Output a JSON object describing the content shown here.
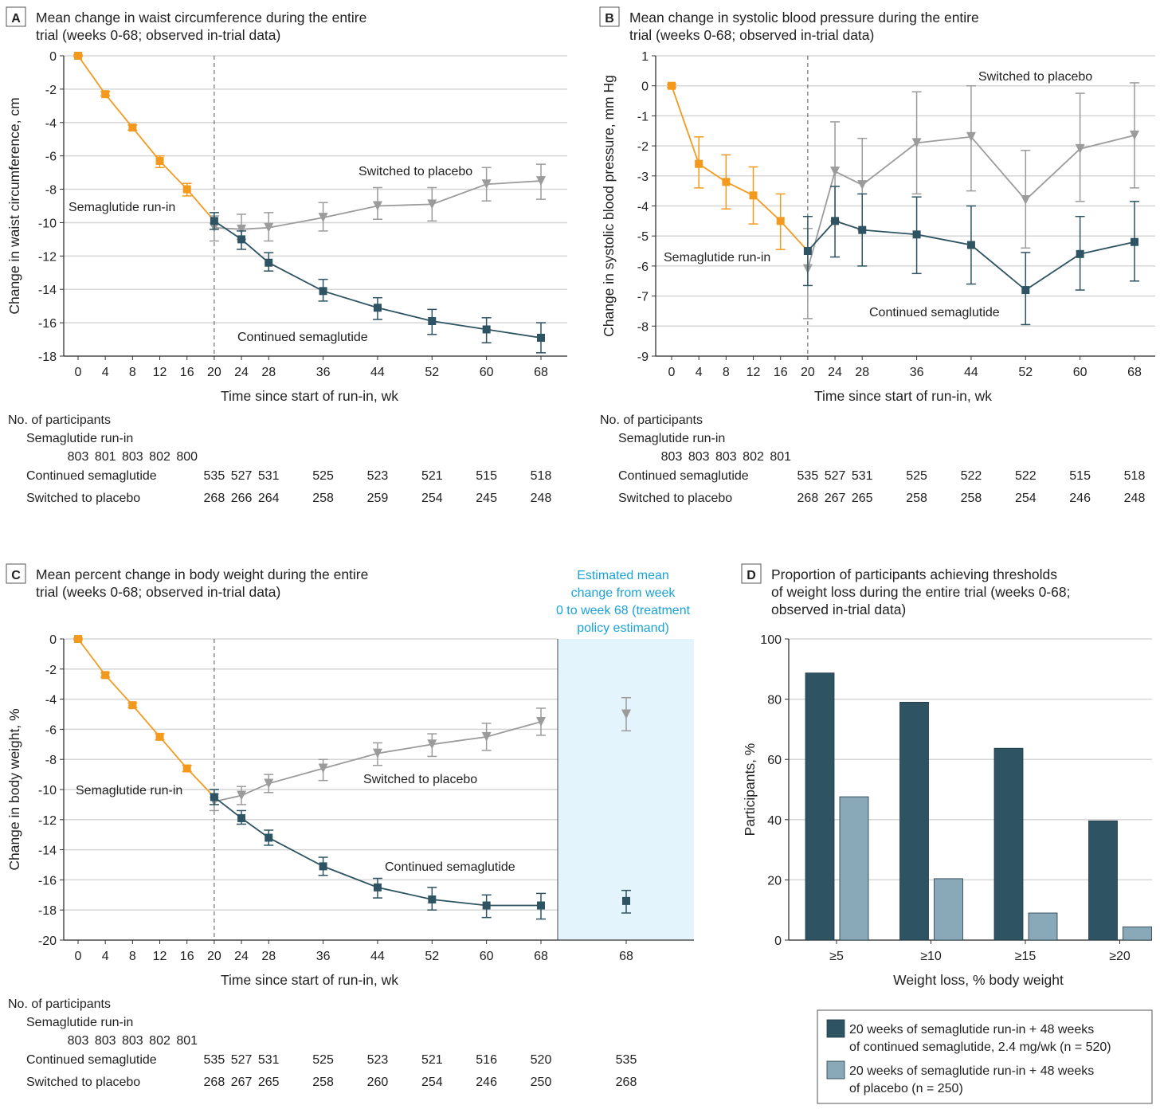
{
  "colors": {
    "runin": "#f39a1e",
    "semaglutide": "#2e5362",
    "placebo": "#9b9b9b",
    "placebo_bar": "#8aa9b8",
    "estimand_shade": "#e3f4fc",
    "estimand_text": "#1ba3d6"
  },
  "chart_data": [
    {
      "panel": "A",
      "type": "line",
      "title": "Mean change in waist circumference during the entire trial (weeks 0-68; observed in-trial data)",
      "title_lines": [
        "Mean change in waist circumference during the entire",
        "trial (weeks 0-68; observed in-trial data)"
      ],
      "xlabel": "Time since start of run-in, wk",
      "ylabel": "Change in waist circumference, cm",
      "xticks": [
        0,
        4,
        8,
        12,
        16,
        20,
        24,
        28,
        36,
        44,
        52,
        60,
        68
      ],
      "yticks": [
        0,
        -2,
        -4,
        -6,
        -8,
        -10,
        -12,
        -14,
        -16,
        -18
      ],
      "ylim": [
        -18,
        0
      ],
      "grid": true,
      "randomization_week": 20,
      "annotations": {
        "runin": "Semaglutide run-in",
        "semaglutide": "Continued semaglutide",
        "placebo": "Switched to placebo"
      },
      "series": [
        {
          "key": "runin",
          "x": [
            0,
            4,
            8,
            12,
            16,
            20
          ],
          "y": [
            0,
            -2.3,
            -4.3,
            -6.3,
            -8.0,
            -9.9
          ],
          "lo": [
            -0.05,
            -2.4,
            -4.45,
            -6.7,
            -8.4,
            -9.9
          ],
          "hi": [
            0.05,
            -2.15,
            -4.15,
            -6.0,
            -7.65,
            -9.9
          ]
        },
        {
          "key": "semaglutide",
          "x": [
            20,
            24,
            28,
            36,
            44,
            52,
            60,
            68
          ],
          "y": [
            -9.9,
            -11.0,
            -12.4,
            -14.1,
            -15.1,
            -15.9,
            -16.4,
            -16.9
          ],
          "lo": [
            -10.4,
            -11.6,
            -12.9,
            -14.7,
            -15.8,
            -16.7,
            -17.2,
            -17.8
          ],
          "hi": [
            -9.4,
            -10.5,
            -11.8,
            -13.4,
            -14.5,
            -15.2,
            -15.7,
            -16.0
          ]
        },
        {
          "key": "placebo",
          "x": [
            20,
            24,
            28,
            36,
            44,
            52,
            60,
            68
          ],
          "y": [
            -10.3,
            -10.4,
            -10.3,
            -9.7,
            -9.0,
            -8.9,
            -7.7,
            -7.5
          ],
          "lo": [
            -11.1,
            -11.0,
            -11.1,
            -10.5,
            -9.8,
            -9.9,
            -8.7,
            -8.6
          ],
          "hi": [
            -9.6,
            -9.5,
            -9.4,
            -8.8,
            -7.9,
            -7.9,
            -6.7,
            -6.5
          ]
        }
      ],
      "participants": {
        "header": "No. of participants",
        "runin_label": "Semaglutide run-in",
        "runin_weeks": [
          0,
          4,
          8,
          12,
          16
        ],
        "runin": [
          "803",
          "801",
          "803",
          "802",
          "800"
        ],
        "sema_label": "Continued semaglutide",
        "weeks": [
          20,
          24,
          28,
          36,
          44,
          52,
          60,
          68
        ],
        "sema": [
          "535",
          "527",
          "531",
          "525",
          "523",
          "521",
          "515",
          "518"
        ],
        "placebo_label": "Switched to placebo",
        "placebo": [
          "268",
          "266",
          "264",
          "258",
          "259",
          "254",
          "245",
          "248"
        ]
      }
    },
    {
      "panel": "B",
      "type": "line",
      "title": "Mean change in systolic blood pressure during the entire trial (weeks 0-68; observed in-trial data)",
      "title_lines": [
        "Mean change in systolic blood pressure during the entire",
        "trial (weeks 0-68; observed in-trial data)"
      ],
      "xlabel": "Time since start of run-in, wk",
      "ylabel": "Change in systolic blood pressure, mm Hg",
      "xticks": [
        0,
        4,
        8,
        12,
        16,
        20,
        24,
        28,
        36,
        44,
        52,
        60,
        68
      ],
      "yticks": [
        1,
        0,
        -1,
        -2,
        -3,
        -4,
        -5,
        -6,
        -7,
        -8,
        -9
      ],
      "ylim": [
        -9,
        1
      ],
      "grid": true,
      "randomization_week": 20,
      "annotations": {
        "runin": "Semaglutide run-in",
        "semaglutide": "Continued semaglutide",
        "placebo": "Switched to placebo"
      },
      "series": [
        {
          "key": "runin",
          "x": [
            0,
            4,
            8,
            12,
            16,
            20
          ],
          "y": [
            0,
            -2.6,
            -3.2,
            -3.65,
            -4.5,
            -5.5
          ],
          "lo": [
            -0.05,
            -3.4,
            -4.1,
            -4.6,
            -5.45,
            -5.5
          ],
          "hi": [
            0.05,
            -1.7,
            -2.3,
            -2.7,
            -3.6,
            -5.5
          ]
        },
        {
          "key": "semaglutide",
          "x": [
            20,
            24,
            28,
            36,
            44,
            52,
            60,
            68
          ],
          "y": [
            -5.5,
            -4.5,
            -4.8,
            -4.95,
            -5.3,
            -6.8,
            -5.6,
            -5.2
          ],
          "lo": [
            -6.65,
            -5.7,
            -6.0,
            -6.25,
            -6.6,
            -7.95,
            -6.8,
            -6.5
          ],
          "hi": [
            -4.35,
            -3.35,
            -3.6,
            -3.7,
            -4.0,
            -5.55,
            -4.35,
            -3.85
          ]
        },
        {
          "key": "placebo",
          "x": [
            20,
            24,
            28,
            36,
            44,
            52,
            60,
            68
          ],
          "y": [
            -6.1,
            -2.85,
            -3.3,
            -1.9,
            -1.7,
            -3.8,
            -2.1,
            -1.65
          ],
          "lo": [
            -7.75,
            -4.5,
            -4.8,
            -3.6,
            -3.5,
            -5.4,
            -3.85,
            -3.4
          ],
          "hi": [
            -4.75,
            -1.2,
            -1.75,
            -0.2,
            0.0,
            -2.15,
            -0.25,
            0.1
          ]
        }
      ],
      "participants": {
        "header": "No. of participants",
        "runin_label": "Semaglutide run-in",
        "runin_weeks": [
          0,
          4,
          8,
          12,
          16
        ],
        "runin": [
          "803",
          "803",
          "803",
          "802",
          "801"
        ],
        "sema_label": "Continued semaglutide",
        "weeks": [
          20,
          24,
          28,
          36,
          44,
          52,
          60,
          68
        ],
        "sema": [
          "535",
          "527",
          "531",
          "525",
          "522",
          "522",
          "515",
          "518"
        ],
        "placebo_label": "Switched to placebo",
        "placebo": [
          "268",
          "267",
          "265",
          "258",
          "258",
          "254",
          "246",
          "248"
        ]
      }
    },
    {
      "panel": "C",
      "type": "line",
      "title": "Mean percent change in body weight during the entire trial (weeks 0-68; observed in-trial data)",
      "title_lines": [
        "Mean percent change in body weight during the entire",
        "trial (weeks 0-68; observed in-trial data)"
      ],
      "xlabel": "Time since start of run-in, wk",
      "ylabel": "Change in body weight, %",
      "xticks": [
        0,
        4,
        8,
        12,
        16,
        20,
        24,
        28,
        36,
        44,
        52,
        60,
        68
      ],
      "yticks": [
        0,
        -2,
        -4,
        -6,
        -8,
        -10,
        -12,
        -14,
        -16,
        -18,
        -20
      ],
      "ylim": [
        -20,
        0
      ],
      "grid": true,
      "randomization_week": 20,
      "annotations": {
        "runin": "Semaglutide run-in",
        "semaglutide": "Continued semaglutide",
        "placebo": "Switched to placebo"
      },
      "series": [
        {
          "key": "runin",
          "x": [
            0,
            4,
            8,
            12,
            16,
            20
          ],
          "y": [
            0,
            -2.4,
            -4.4,
            -6.5,
            -8.6,
            -10.5
          ],
          "lo": [
            -0.05,
            -2.55,
            -4.55,
            -6.7,
            -8.8,
            -10.5
          ],
          "hi": [
            0.05,
            -2.25,
            -4.25,
            -6.3,
            -8.4,
            -10.5
          ]
        },
        {
          "key": "semaglutide",
          "x": [
            20,
            24,
            28,
            36,
            44,
            52,
            60,
            68
          ],
          "y": [
            -10.5,
            -11.9,
            -13.2,
            -15.1,
            -16.5,
            -17.3,
            -17.7,
            -17.7
          ],
          "lo": [
            -11.0,
            -12.3,
            -13.7,
            -15.7,
            -17.2,
            -18.0,
            -18.5,
            -18.6
          ],
          "hi": [
            -10.0,
            -11.4,
            -12.7,
            -14.5,
            -15.9,
            -16.5,
            -17.0,
            -16.9
          ]
        },
        {
          "key": "placebo",
          "x": [
            20,
            24,
            28,
            36,
            44,
            52,
            60,
            68
          ],
          "y": [
            -10.8,
            -10.4,
            -9.6,
            -8.6,
            -7.6,
            -7.0,
            -6.5,
            -5.5
          ],
          "lo": [
            -11.4,
            -11.0,
            -10.2,
            -9.4,
            -8.4,
            -7.8,
            -7.4,
            -6.4
          ],
          "hi": [
            -10.3,
            -9.8,
            -9.0,
            -8.0,
            -6.9,
            -6.3,
            -5.6,
            -4.6
          ]
        }
      ],
      "estimand": {
        "label_lines": [
          "Estimated mean",
          "change from week",
          "0 to week 68 (treatment",
          "policy estimand)"
        ],
        "week": 68,
        "semaglutide": {
          "y": -17.4,
          "lo": -18.2,
          "hi": -16.7
        },
        "placebo": {
          "y": -5.0,
          "lo": -6.1,
          "hi": -3.9
        },
        "n_sema": "535",
        "n_placebo": "268"
      },
      "participants": {
        "header": "No. of participants",
        "runin_label": "Semaglutide run-in",
        "runin_weeks": [
          0,
          4,
          8,
          12,
          16
        ],
        "runin": [
          "803",
          "803",
          "803",
          "802",
          "801"
        ],
        "sema_label": "Continued semaglutide",
        "weeks": [
          20,
          24,
          28,
          36,
          44,
          52,
          60,
          68
        ],
        "sema": [
          "535",
          "527",
          "531",
          "525",
          "523",
          "521",
          "516",
          "520"
        ],
        "placebo_label": "Switched to placebo",
        "placebo": [
          "268",
          "267",
          "265",
          "258",
          "260",
          "254",
          "246",
          "250"
        ]
      }
    },
    {
      "panel": "D",
      "type": "bar",
      "title": "Proportion of participants achieving thresholds of weight loss during the entire trial (weeks 0-68; observed in-trial data)",
      "title_lines": [
        "Proportion of participants achieving thresholds",
        "of weight loss during the entire trial (weeks 0-68;",
        "observed in-trial data)"
      ],
      "xlabel": "Weight loss, % body weight",
      "ylabel": "Participants, %",
      "categories": [
        "≥5",
        "≥10",
        "≥15",
        "≥20"
      ],
      "yticks": [
        0,
        20,
        40,
        60,
        80,
        100
      ],
      "ylim": [
        0,
        100
      ],
      "grid": true,
      "legend_placement": "bottom-right",
      "series": [
        {
          "name": "20 weeks of semaglutide run-in + 48 weeks of continued semaglutide, 2.4 mg/wk (n=520)",
          "name_lines": [
            "20 weeks of semaglutide run-in + 48 weeks",
            "of continued semaglutide, 2.4 mg/wk (n = 520)"
          ],
          "values": [
            88.7,
            79.0,
            63.7,
            39.6
          ]
        },
        {
          "name": "20 weeks of semaglutide run-in + 48 weeks of placebo (n=250)",
          "name_lines": [
            "20 weeks of semaglutide run-in + 48 weeks",
            "of placebo (n = 250)"
          ],
          "values": [
            47.6,
            20.4,
            9.0,
            4.4
          ]
        }
      ]
    }
  ]
}
